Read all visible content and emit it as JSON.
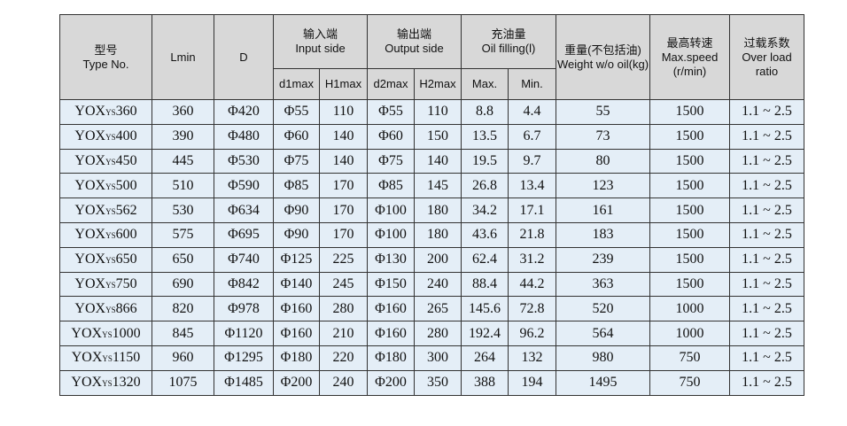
{
  "header": {
    "type": {
      "zh": "型号",
      "en": "Type No."
    },
    "lmin": "Lmin",
    "d": "D",
    "input": {
      "zh": "输入端",
      "en": "Input side"
    },
    "output": {
      "zh": "输出端",
      "en": "Output side"
    },
    "oil": {
      "zh": "充油量",
      "en": "Oil filling(l)"
    },
    "weight": {
      "zh": "重量(不包括油)",
      "en": "Weight w/o oil(kg)"
    },
    "speed": {
      "zh": "最高转速",
      "en": "Max.speed",
      "unit": "(r/min)"
    },
    "ratio": {
      "zh": "过载系数",
      "en": "Over load ratio"
    },
    "d1max": "d1max",
    "h1max": "H1max",
    "d2max": "d2max",
    "h2max": "H2max",
    "max": "Max.",
    "min": "Min."
  },
  "rows": [
    {
      "prefix": "YOX",
      "sub": "YS",
      "num": "360",
      "lmin": "360",
      "d": "Φ420",
      "d1": "Φ55",
      "h1": "110",
      "d2": "Φ55",
      "h2": "110",
      "omax": "8.8",
      "omin": "4.4",
      "w": "55",
      "s": "1500",
      "r": "1.1 ~ 2.5"
    },
    {
      "prefix": "YOX",
      "sub": "YS",
      "num": "400",
      "lmin": "390",
      "d": "Φ480",
      "d1": "Φ60",
      "h1": "140",
      "d2": "Φ60",
      "h2": "150",
      "omax": "13.5",
      "omin": "6.7",
      "w": "73",
      "s": "1500",
      "r": "1.1 ~ 2.5"
    },
    {
      "prefix": "YOX",
      "sub": "YS",
      "num": "450",
      "lmin": "445",
      "d": "Φ530",
      "d1": "Φ75",
      "h1": "140",
      "d2": "Φ75",
      "h2": "140",
      "omax": "19.5",
      "omin": "9.7",
      "w": "80",
      "s": "1500",
      "r": "1.1 ~ 2.5"
    },
    {
      "prefix": "YOX",
      "sub": "YS",
      "num": "500",
      "lmin": "510",
      "d": "Φ590",
      "d1": "Φ85",
      "h1": "170",
      "d2": "Φ85",
      "h2": "145",
      "omax": "26.8",
      "omin": "13.4",
      "w": "123",
      "s": "1500",
      "r": "1.1 ~ 2.5"
    },
    {
      "prefix": "YOX",
      "sub": "YS",
      "num": "562",
      "lmin": "530",
      "d": "Φ634",
      "d1": "Φ90",
      "h1": "170",
      "d2": "Φ100",
      "h2": "180",
      "omax": "34.2",
      "omin": "17.1",
      "w": "161",
      "s": "1500",
      "r": "1.1 ~ 2.5"
    },
    {
      "prefix": "YOX",
      "sub": "YS",
      "num": "600",
      "lmin": "575",
      "d": "Φ695",
      "d1": "Φ90",
      "h1": "170",
      "d2": "Φ100",
      "h2": "180",
      "omax": "43.6",
      "omin": "21.8",
      "w": "183",
      "s": "1500",
      "r": "1.1 ~ 2.5"
    },
    {
      "prefix": "YOX",
      "sub": "YS",
      "num": "650",
      "lmin": "650",
      "d": "Φ740",
      "d1": "Φ125",
      "h1": "225",
      "d2": "Φ130",
      "h2": "200",
      "omax": "62.4",
      "omin": "31.2",
      "w": "239",
      "s": "1500",
      "r": "1.1 ~ 2.5"
    },
    {
      "prefix": "YOX",
      "sub": "YS",
      "num": "750",
      "lmin": "690",
      "d": "Φ842",
      "d1": "Φ140",
      "h1": "245",
      "d2": "Φ150",
      "h2": "240",
      "omax": "88.4",
      "omin": "44.2",
      "w": "363",
      "s": "1500",
      "r": "1.1 ~ 2.5"
    },
    {
      "prefix": "YOX",
      "sub": "YS",
      "num": "866",
      "lmin": "820",
      "d": "Φ978",
      "d1": "Φ160",
      "h1": "280",
      "d2": "Φ160",
      "h2": "265",
      "omax": "145.6",
      "omin": "72.8",
      "w": "520",
      "s": "1000",
      "r": "1.1 ~ 2.5"
    },
    {
      "prefix": "YOX",
      "sub": "YS",
      "num": "1000",
      "lmin": "845",
      "d": "Φ1120",
      "d1": "Φ160",
      "h1": "210",
      "d2": "Φ160",
      "h2": "280",
      "omax": "192.4",
      "omin": "96.2",
      "w": "564",
      "s": "1000",
      "r": "1.1 ~ 2.5"
    },
    {
      "prefix": "YOX",
      "sub": "YS",
      "num": "1150",
      "lmin": "960",
      "d": "Φ1295",
      "d1": "Φ180",
      "h1": "220",
      "d2": "Φ180",
      "h2": "300",
      "omax": "264",
      "omin": "132",
      "w": "980",
      "s": "750",
      "r": "1.1 ~ 2.5"
    },
    {
      "prefix": "YOX",
      "sub": "YS",
      "num": "1320",
      "lmin": "1075",
      "d": "Φ1485",
      "d1": "Φ200",
      "h1": "240",
      "d2": "Φ200",
      "h2": "350",
      "omax": "388",
      "omin": "194",
      "w": "1495",
      "s": "750",
      "r": "1.1 ~ 2.5"
    }
  ]
}
